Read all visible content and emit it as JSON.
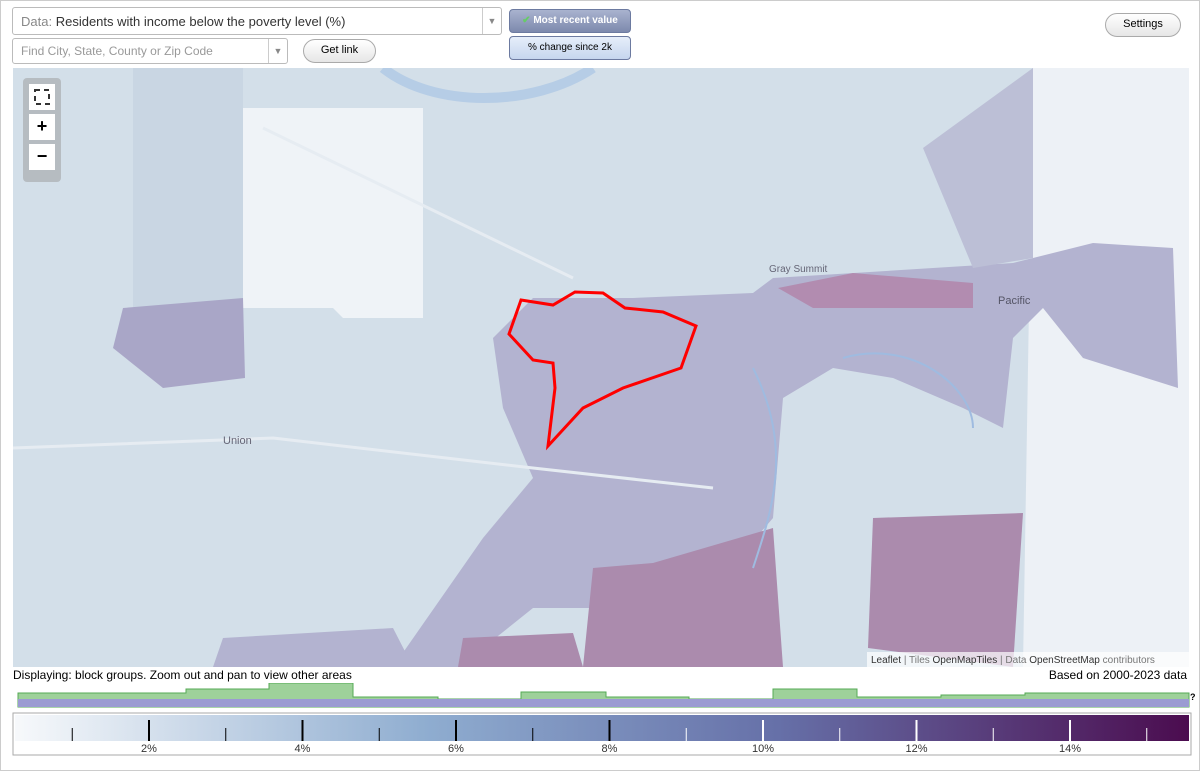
{
  "toolbar": {
    "data_label": "Data:",
    "data_value": "Residents with income below the poverty level (%)",
    "search_placeholder": "Find City, State, County or Zip Code",
    "get_link": "Get link",
    "most_recent": "Most recent value",
    "change_since": "% change since 2k",
    "settings": "Settings"
  },
  "map": {
    "zoom_in": "+",
    "zoom_out": "−",
    "places": [
      "Gray Summit",
      "Pacific",
      "Union"
    ],
    "attribution": {
      "leaflet": "Leaflet",
      "tiles_prefix": "| Tiles",
      "tiles": "OpenMapTiles",
      "data_prefix": "| Data",
      "data": "OpenStreetMap",
      "suffix": "contributors"
    }
  },
  "footer": {
    "displaying": "Displaying: block groups. Zoom out and pan to view other areas",
    "based_on": "Based on 2000-2023 data",
    "help": "?"
  },
  "scale": {
    "labels": [
      "2%",
      "4%",
      "6%",
      "8%",
      "10%",
      "12%",
      "14%"
    ]
  }
}
